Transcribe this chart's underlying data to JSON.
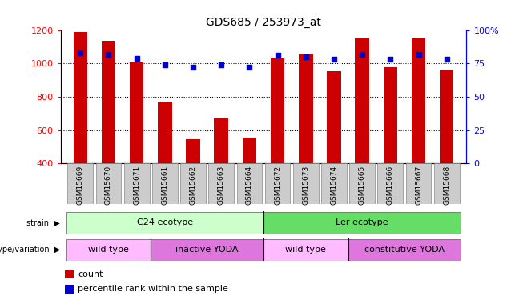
{
  "title": "GDS685 / 253973_at",
  "samples": [
    "GSM15669",
    "GSM15670",
    "GSM15671",
    "GSM15661",
    "GSM15662",
    "GSM15663",
    "GSM15664",
    "GSM15672",
    "GSM15673",
    "GSM15674",
    "GSM15665",
    "GSM15666",
    "GSM15667",
    "GSM15668"
  ],
  "counts": [
    1190,
    1135,
    1005,
    770,
    545,
    670,
    555,
    1035,
    1055,
    955,
    1150,
    975,
    1155,
    960
  ],
  "percentiles": [
    83,
    82,
    79,
    74,
    72,
    74,
    72,
    81,
    80,
    78,
    82,
    78,
    82,
    78
  ],
  "ylim_left": [
    400,
    1200
  ],
  "ylim_right": [
    0,
    100
  ],
  "bar_color": "#cc0000",
  "dot_color": "#0000cc",
  "bar_bottom": 400,
  "strain_labels": [
    {
      "text": "C24 ecotype",
      "start": 0,
      "end": 6,
      "color": "#ccffcc"
    },
    {
      "text": "Ler ecotype",
      "start": 7,
      "end": 13,
      "color": "#66dd66"
    }
  ],
  "genotype_labels": [
    {
      "text": "wild type",
      "start": 0,
      "end": 2,
      "color": "#ffbbff"
    },
    {
      "text": "inactive YODA",
      "start": 3,
      "end": 6,
      "color": "#dd77dd"
    },
    {
      "text": "wild type",
      "start": 7,
      "end": 9,
      "color": "#ffbbff"
    },
    {
      "text": "constitutive YODA",
      "start": 10,
      "end": 13,
      "color": "#dd77dd"
    }
  ],
  "yticks_left": [
    400,
    600,
    800,
    1000,
    1200
  ],
  "yticks_right": [
    0,
    25,
    50,
    75,
    100
  ],
  "grid_values": [
    600,
    800,
    1000
  ],
  "background_color": "#ffffff",
  "label_count": "count",
  "label_percentile": "percentile rank within the sample",
  "strain_divider": 6.5,
  "geno_dividers": [
    2.5,
    6.5,
    9.5
  ]
}
